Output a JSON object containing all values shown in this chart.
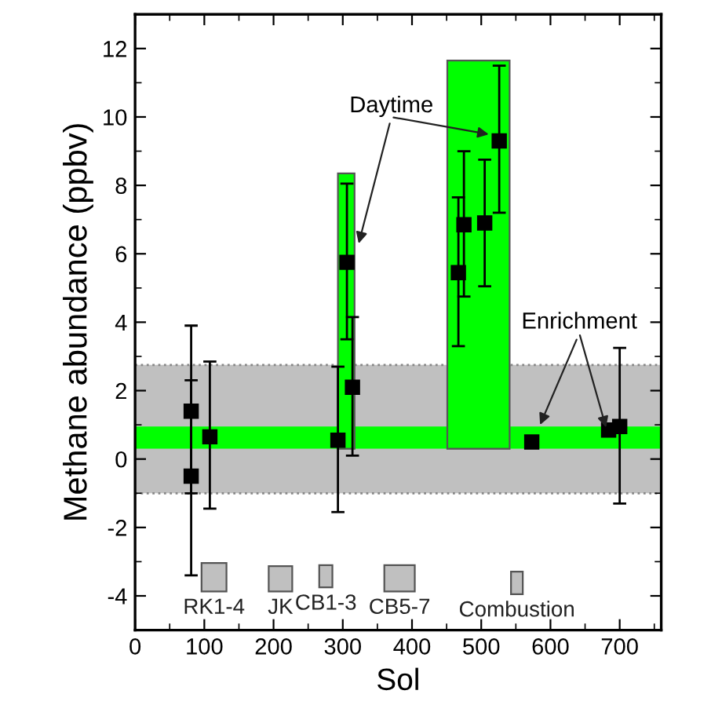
{
  "chart_data": {
    "type": "scatter",
    "xlabel": "Sol",
    "ylabel": "Methane abundance (ppbv)",
    "xlim": [
      0,
      760
    ],
    "ylim": [
      -5,
      13
    ],
    "xticks": [
      0,
      100,
      200,
      300,
      400,
      500,
      600,
      700
    ],
    "yticks": [
      -4,
      -2,
      0,
      2,
      4,
      6,
      8,
      10,
      12
    ],
    "grid": false,
    "legend": false,
    "series": [
      {
        "type": "area",
        "color": "#00ff00",
        "x": [
          293,
          293,
          317,
          317
        ],
        "values": [
          0.3,
          8.35,
          8.35,
          0.3
        ]
      },
      {
        "type": "area",
        "color": "#00ff00",
        "x": [
          451,
          451,
          541,
          541
        ],
        "values": [
          0.3,
          11.65,
          11.65,
          0.3
        ]
      },
      {
        "type": "area",
        "color": "#c0c0c0",
        "x": [
          96,
          96,
          132,
          132
        ],
        "values": [
          -3.87,
          -3.04,
          -3.04,
          -3.87
        ]
      },
      {
        "type": "area",
        "color": "#c0c0c0",
        "x": [
          193,
          193,
          227,
          227
        ],
        "values": [
          -3.87,
          -3.13,
          -3.13,
          -3.87
        ]
      },
      {
        "type": "area",
        "color": "#c0c0c0",
        "x": [
          266,
          266,
          285,
          285
        ],
        "values": [
          -3.75,
          -3.1,
          -3.1,
          -3.75
        ]
      },
      {
        "type": "area",
        "color": "#c0c0c0",
        "x": [
          360,
          360,
          404,
          404
        ],
        "values": [
          -3.87,
          -3.1,
          -3.1,
          -3.87
        ]
      },
      {
        "type": "area",
        "color": "#c0c0c0",
        "x": [
          543,
          543,
          560,
          560
        ],
        "values": [
          -3.95,
          -3.29,
          -3.29,
          -3.95
        ]
      },
      {
        "color": "#000000",
        "marker": "square",
        "x": [
          81,
          81,
          108,
          293,
          306,
          314,
          467,
          475,
          505,
          526,
          573,
          684,
          700
        ],
        "values": [
          -0.5,
          1.4,
          0.65,
          0.55,
          5.75,
          2.1,
          5.45,
          6.85,
          6.9,
          9.3,
          0.5,
          0.85,
          0.95
        ],
        "errors": [
          [
            -3.4,
            2.3
          ],
          [
            -1.0,
            3.9
          ],
          [
            -1.45,
            2.85
          ],
          [
            -1.55,
            2.7
          ],
          [
            3.5,
            8.05
          ],
          [
            0.1,
            4.15
          ],
          [
            3.3,
            7.65
          ],
          [
            4.75,
            9.0
          ],
          [
            5.05,
            8.75
          ],
          [
            7.2,
            11.5
          ],
          null,
          null,
          [
            -1.3,
            3.25
          ]
        ]
      }
    ],
    "bands": [
      {
        "axis": "y",
        "from": -1.0,
        "to": 2.75,
        "color": "#c0c0c0"
      },
      {
        "axis": "y",
        "from": 0.3,
        "to": 0.95,
        "color": "#00ff00"
      }
    ],
    "ref_lines": [
      {
        "axis": "y",
        "value": -1.0,
        "color": "#888888",
        "line_style": "dotted"
      },
      {
        "axis": "y",
        "value": 2.75,
        "color": "#888888",
        "line_style": "dotted"
      }
    ],
    "annotations": [
      {
        "text": "Daytime",
        "x": 323,
        "y": 6.3
      },
      {
        "text": "Enrichment",
        "x": 585,
        "y": 1.0
      },
      {
        "text": "RK1-4",
        "x": 114,
        "y": -3.87
      },
      {
        "text": "JK",
        "x": 210,
        "y": -3.87
      },
      {
        "text": "CB1-3",
        "x": 275.5,
        "y": -3.75
      },
      {
        "text": "CB5-7",
        "x": 382,
        "y": -3.87
      },
      {
        "text": "Combustion",
        "x": 551.5,
        "y": -3.95
      }
    ]
  }
}
